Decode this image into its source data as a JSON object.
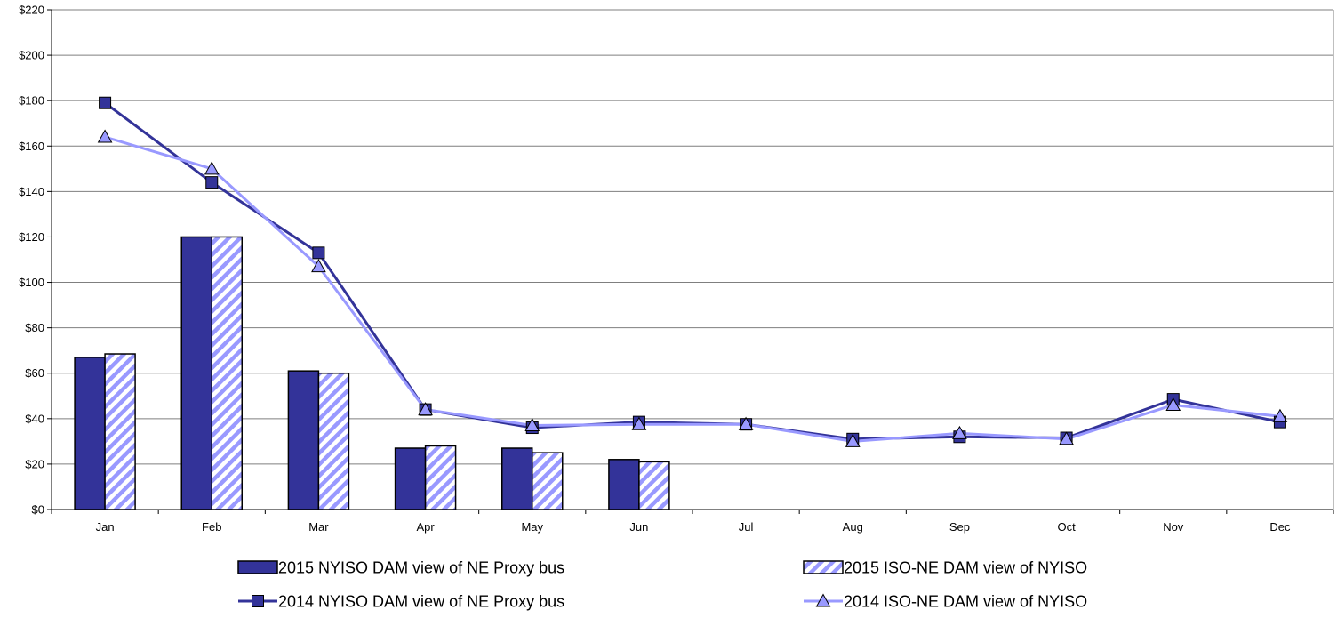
{
  "chart_data": {
    "type": "bar",
    "categories": [
      "Jan",
      "Feb",
      "Mar",
      "Apr",
      "May",
      "Jun",
      "Jul",
      "Aug",
      "Sep",
      "Oct",
      "Nov",
      "Dec"
    ],
    "ylim": [
      0,
      220
    ],
    "yticks": [
      0,
      20,
      40,
      60,
      80,
      100,
      120,
      140,
      160,
      180,
      200,
      220
    ],
    "ytick_labels": [
      "$0",
      "$20",
      "$40",
      "$60",
      "$80",
      "$100",
      "$120",
      "$140",
      "$160",
      "$180",
      "$200",
      "$220"
    ],
    "grid": true,
    "legend_position": "bottom",
    "series": [
      {
        "name": "2015 NYISO DAM view of NE Proxy bus",
        "kind": "bar",
        "style": "solid",
        "color": "#333399",
        "values": [
          67,
          120,
          61,
          27,
          27,
          22,
          null,
          null,
          null,
          null,
          null,
          null
        ]
      },
      {
        "name": "2015 ISO-NE DAM view of NYISO",
        "kind": "bar",
        "style": "hatched",
        "color": "#9999ff",
        "values": [
          68.5,
          120,
          60,
          28,
          25,
          21,
          null,
          null,
          null,
          null,
          null,
          null
        ]
      },
      {
        "name": "2014 NYISO DAM view of NE Proxy bus",
        "kind": "line",
        "marker": "square",
        "color": "#333399",
        "values": [
          179,
          144,
          113,
          44,
          36,
          38.5,
          37.5,
          31,
          32,
          31.5,
          48.5,
          38.5
        ]
      },
      {
        "name": "2014 ISO-NE DAM view of NYISO",
        "kind": "line",
        "marker": "triangle",
        "color": "#9999ff",
        "values": [
          164,
          150,
          107,
          44,
          37,
          37.5,
          37.5,
          30,
          33.5,
          31,
          46,
          41
        ]
      }
    ]
  }
}
